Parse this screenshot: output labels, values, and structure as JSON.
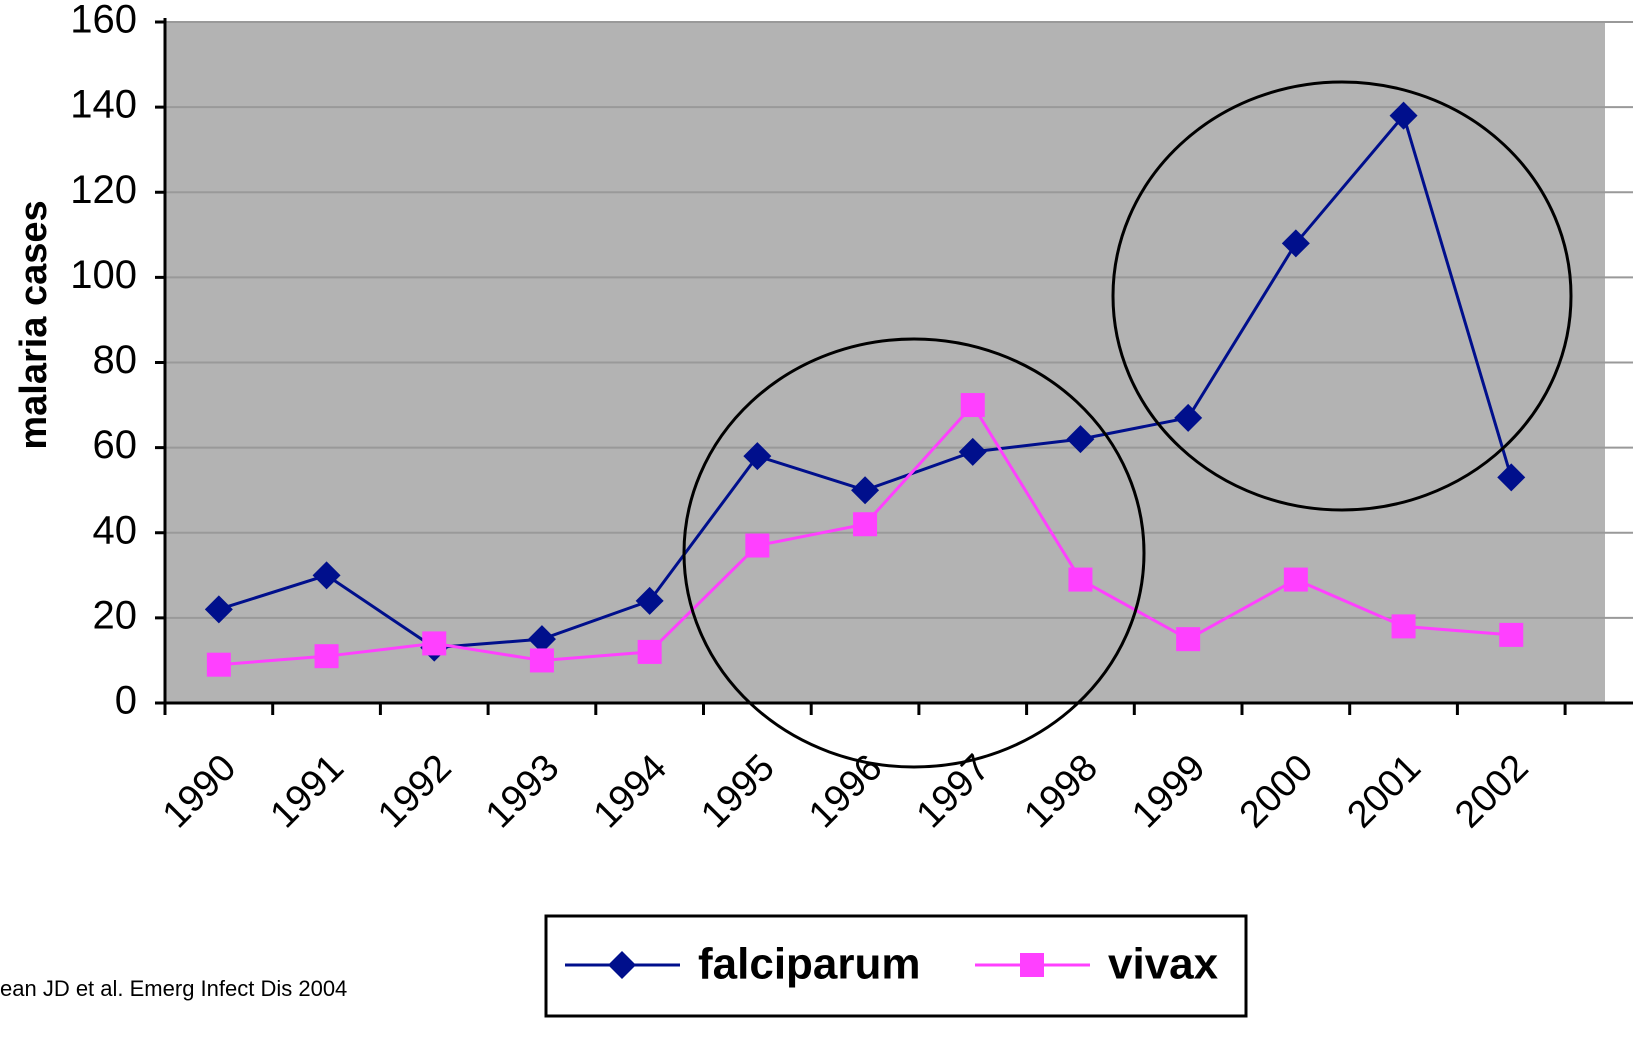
{
  "chart_data": {
    "type": "line",
    "y_label": "malaria cases",
    "categories": [
      "1990",
      "1991",
      "1992",
      "1993",
      "1994",
      "1995",
      "1996",
      "1997",
      "1998",
      "1999",
      "2000",
      "2001",
      "2002"
    ],
    "series": [
      {
        "name": "falciparum",
        "color": "#000f8c",
        "marker": "diamond",
        "values": [
          22,
          30,
          13,
          15,
          24,
          58,
          50,
          59,
          62,
          67,
          108,
          138,
          53
        ]
      },
      {
        "name": "vivax",
        "color": "#ff40ff",
        "marker": "square",
        "values": [
          9,
          11,
          14,
          10,
          12,
          37,
          42,
          70,
          29,
          15,
          29,
          18,
          16
        ]
      }
    ],
    "ylim": [
      0,
      160
    ],
    "yticks": [
      0,
      20,
      40,
      60,
      80,
      100,
      120,
      140,
      160
    ],
    "grid": true,
    "source": "ean JD et al. Emerg Infect Dis 2004"
  }
}
